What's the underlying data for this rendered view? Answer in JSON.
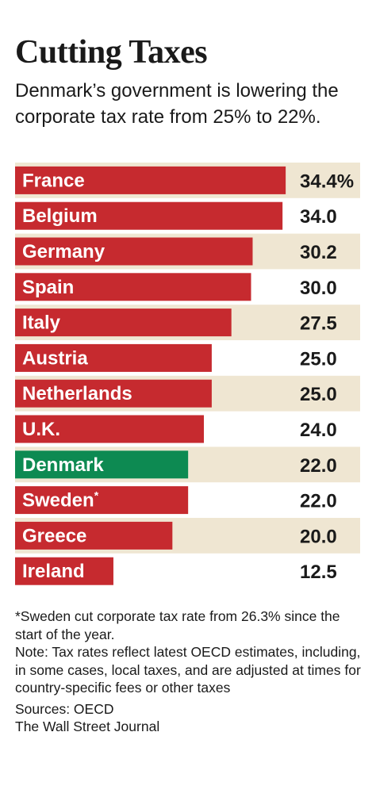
{
  "header": {
    "title": "Cutting Taxes",
    "subtitle": "Denmark’s government is lowering the corporate tax rate from 25% to 22%."
  },
  "colors": {
    "bar": "#c62a2f",
    "highlight": "#0d8a52",
    "stripe": "#efe6d2"
  },
  "chart_data": {
    "type": "bar",
    "orientation": "horizontal",
    "categories": [
      "France",
      "Belgium",
      "Germany",
      "Spain",
      "Italy",
      "Austria",
      "Netherlands",
      "U.K.",
      "Denmark",
      "Sweden",
      "Greece",
      "Ireland"
    ],
    "values": [
      34.4,
      34.0,
      30.2,
      30.0,
      27.5,
      25.0,
      25.0,
      24.0,
      22.0,
      22.0,
      20.0,
      12.5
    ],
    "value_labels": [
      "34.4%",
      "34.0",
      "30.2",
      "30.0",
      "27.5",
      "25.0",
      "25.0",
      "24.0",
      "22.0",
      "22.0",
      "20.0",
      "12.5"
    ],
    "category_markers": {
      "Sweden": "*"
    },
    "highlight": "Denmark",
    "xlim": [
      0,
      36
    ],
    "grid": false,
    "legend": "none"
  },
  "footnotes": {
    "sweden": "*Sweden cut corporate tax rate from 26.3% since the start of the year.",
    "note": "Note: Tax rates reflect latest OECD estimates, including, in some cases, local taxes, and are adjusted at times for country-specific fees or other taxes",
    "sources": "Sources: OECD",
    "publisher": "The Wall Street Journal"
  }
}
